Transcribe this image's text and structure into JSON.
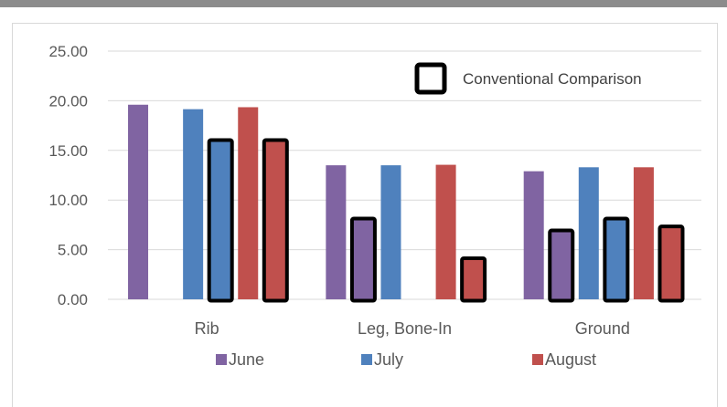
{
  "chart_data": {
    "type": "bar",
    "categories": [
      "Rib",
      "Leg, Bone-In",
      "Ground"
    ],
    "series": [
      {
        "name": "June",
        "color": "#8064a2",
        "values": [
          19.6,
          13.5,
          12.9
        ]
      },
      {
        "name": "June",
        "color": "#8064a2",
        "values": [
          null,
          8.0,
          6.8
        ],
        "highlight": true
      },
      {
        "name": "July",
        "color": "#4f81bd",
        "values": [
          19.15,
          13.5,
          13.3
        ]
      },
      {
        "name": "July",
        "color": "#4f81bd",
        "values": [
          15.9,
          null,
          8.0
        ],
        "highlight": true
      },
      {
        "name": "August",
        "color": "#c0504d",
        "values": [
          19.35,
          13.55,
          13.3
        ]
      },
      {
        "name": "August",
        "color": "#c0504d",
        "values": [
          15.9,
          4.0,
          7.2
        ],
        "highlight": true
      }
    ],
    "legend": [
      "June",
      "July",
      "August"
    ],
    "annotation": "Conventional Comparison",
    "yticks": [
      "0.00",
      "5.00",
      "10.00",
      "15.00",
      "20.00",
      "25.00"
    ],
    "ylim": [
      0,
      25
    ],
    "grid": true,
    "legend_position": "bottom"
  }
}
